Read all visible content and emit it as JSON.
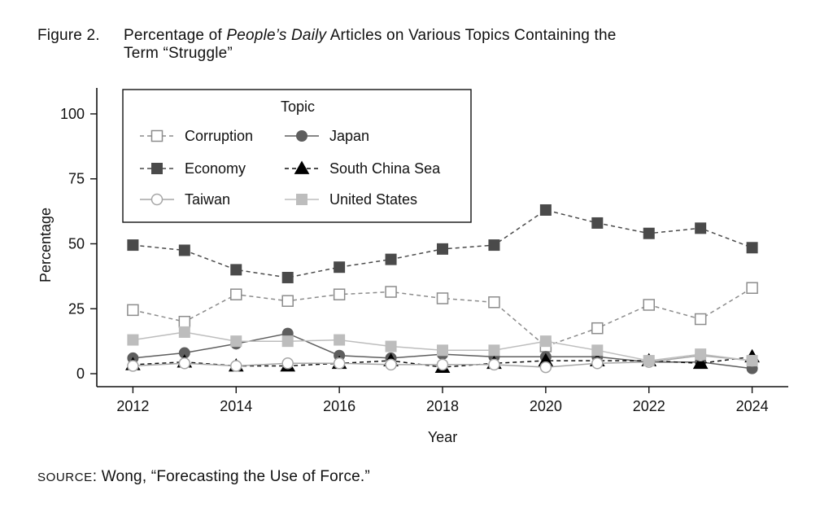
{
  "figure": {
    "label": "Figure 2.",
    "title_pre": "Percentage of",
    "title_italic": "People’s Daily",
    "title_post": "Articles on Various Topics Containing the",
    "title_line2": "Term “Struggle”"
  },
  "source": {
    "label": "SOURCE",
    "text": ": Wong, “Forecasting the Use of Force.”"
  },
  "chart_data": {
    "type": "line",
    "title": "Percentage of People’s Daily Articles on Various Topics Containing the Term “Struggle”",
    "xlabel": "Year",
    "ylabel": "Percentage",
    "xlim": [
      2011.3,
      2024.7
    ],
    "ylim": [
      -5,
      110
    ],
    "xticks": [
      2012,
      2014,
      2016,
      2018,
      2020,
      2022,
      2024
    ],
    "yticks": [
      0,
      25,
      50,
      75,
      100
    ],
    "legend_title": "Topic",
    "legend_position": "top-left",
    "x": [
      2012,
      2013,
      2014,
      2015,
      2016,
      2017,
      2018,
      2019,
      2020,
      2021,
      2022,
      2023,
      2024
    ],
    "series": [
      {
        "name": "Corruption",
        "color": "#8c8c8c",
        "dash": "dashed",
        "marker": "hollow-square",
        "values": [
          24.5,
          20,
          30.5,
          28,
          30.5,
          31.5,
          29,
          27.5,
          10.5,
          17.5,
          26.5,
          21,
          33
        ]
      },
      {
        "name": "Japan",
        "color": "#5e5e5e",
        "dash": "solid",
        "marker": "circle",
        "values": [
          6,
          8,
          11.5,
          15.5,
          7,
          6,
          7.5,
          6.5,
          6.5,
          6.5,
          4.5,
          4.5,
          2
        ]
      },
      {
        "name": "Economy",
        "color": "#4a4a4a",
        "dash": "dashed",
        "marker": "square",
        "values": [
          49.5,
          47.5,
          40,
          37,
          41,
          44,
          48,
          49.5,
          63,
          58,
          54,
          56,
          48.5
        ]
      },
      {
        "name": "South China Sea",
        "color": "#111111",
        "dash": "dashed",
        "marker": "triangle",
        "values": [
          3.5,
          4.5,
          3,
          3,
          4,
          5,
          2.5,
          4,
          5,
          5,
          5,
          4,
          6.5
        ]
      },
      {
        "name": "Taiwan",
        "color": "#a6a6a6",
        "dash": "solid",
        "marker": "hollow-circle",
        "values": [
          3,
          4,
          3,
          4,
          4,
          3.5,
          3.5,
          3.5,
          2.5,
          4,
          4.5,
          7,
          5
        ]
      },
      {
        "name": "United States",
        "color": "#bdbdbd",
        "dash": "solid",
        "marker": "light-square",
        "values": [
          13,
          16,
          12.5,
          12.5,
          13,
          10.5,
          9,
          9,
          12.5,
          9,
          5,
          7.5,
          5
        ]
      }
    ]
  }
}
